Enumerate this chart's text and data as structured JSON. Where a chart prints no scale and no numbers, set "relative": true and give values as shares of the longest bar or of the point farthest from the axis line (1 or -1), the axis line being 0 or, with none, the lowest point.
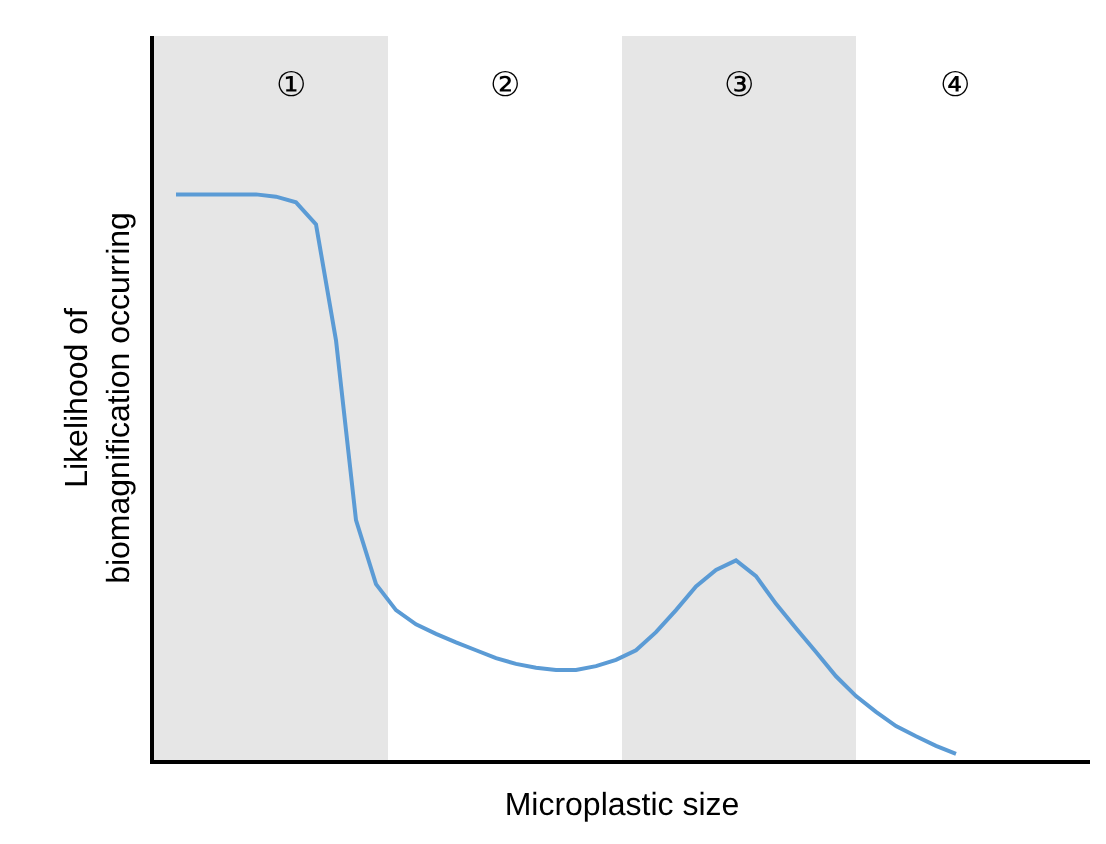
{
  "chart_data": {
    "type": "line",
    "relative": true,
    "xlabel": "Microplastic size",
    "ylabel": "Likelihood of\nbiomagnification occurring",
    "categories": [
      null,
      null,
      null,
      null,
      null,
      null,
      null,
      null,
      null,
      null,
      null,
      null,
      null,
      null,
      null,
      null,
      null,
      null,
      null,
      null,
      null,
      null,
      null,
      null,
      null,
      null,
      null,
      null,
      null,
      null,
      null,
      null,
      null,
      null,
      null,
      null,
      null,
      null,
      null,
      null
    ],
    "series": [
      {
        "color": "#5b9bd5",
        "values": [
          1.0,
          1.0,
          1.0,
          1.0,
          1.0,
          0.996,
          0.986,
          0.947,
          0.742,
          0.424,
          0.311,
          0.265,
          0.24,
          0.223,
          0.208,
          0.194,
          0.18,
          0.17,
          0.163,
          0.159,
          0.159,
          0.166,
          0.177,
          0.194,
          0.226,
          0.265,
          0.307,
          0.336,
          0.353,
          0.325,
          0.276,
          0.233,
          0.191,
          0.148,
          0.113,
          0.085,
          0.06,
          0.042,
          0.025,
          0.011
        ]
      }
    ],
    "annotations": [
      "①",
      "②",
      "③",
      "④"
    ],
    "marker": "none",
    "line_style": "solid"
  }
}
